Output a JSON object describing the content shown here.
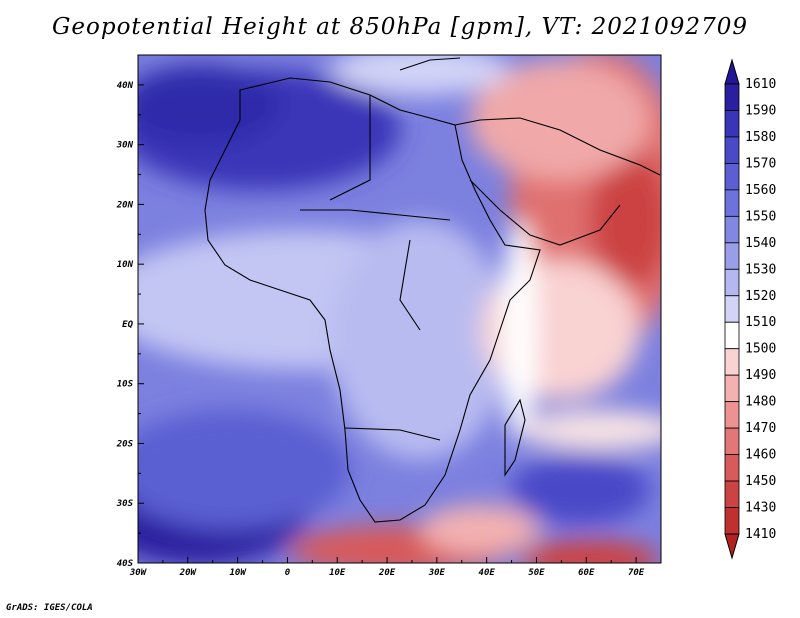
{
  "title": "Geopotential Height at 850hPa [gpm], VT: 2021092709",
  "credit": "GrADS: IGES/COLA",
  "map": {
    "lon_range": [
      -30,
      75
    ],
    "lat_range": [
      -40,
      45
    ],
    "lon_ticks": [
      "30W",
      "20W",
      "10W",
      "0",
      "10E",
      "20E",
      "30E",
      "40E",
      "50E",
      "60E",
      "70E"
    ],
    "lat_ticks": [
      "40N",
      "30N",
      "20N",
      "10N",
      "EQ",
      "10S",
      "20S",
      "30S",
      "40S"
    ]
  },
  "colorbar": {
    "levels": [
      "1610",
      "1590",
      "1580",
      "1570",
      "1560",
      "1550",
      "1540",
      "1530",
      "1520",
      "1510",
      "1500",
      "1490",
      "1480",
      "1470",
      "1460",
      "1450",
      "1430",
      "1410"
    ],
    "colors": [
      "#2a1f9e",
      "#3a35b8",
      "#4a4ac8",
      "#5b5fd3",
      "#6d72dc",
      "#8287e2",
      "#9a9ee9",
      "#b4b7f0",
      "#d2d4f7",
      "#ffffff",
      "#f9d2d2",
      "#f3b1b1",
      "#ec9292",
      "#e37676",
      "#d85a5a",
      "#cc4343",
      "#bf3030"
    ],
    "top_arrow_color": "#24169a",
    "bottom_arrow_color": "#b32222"
  }
}
